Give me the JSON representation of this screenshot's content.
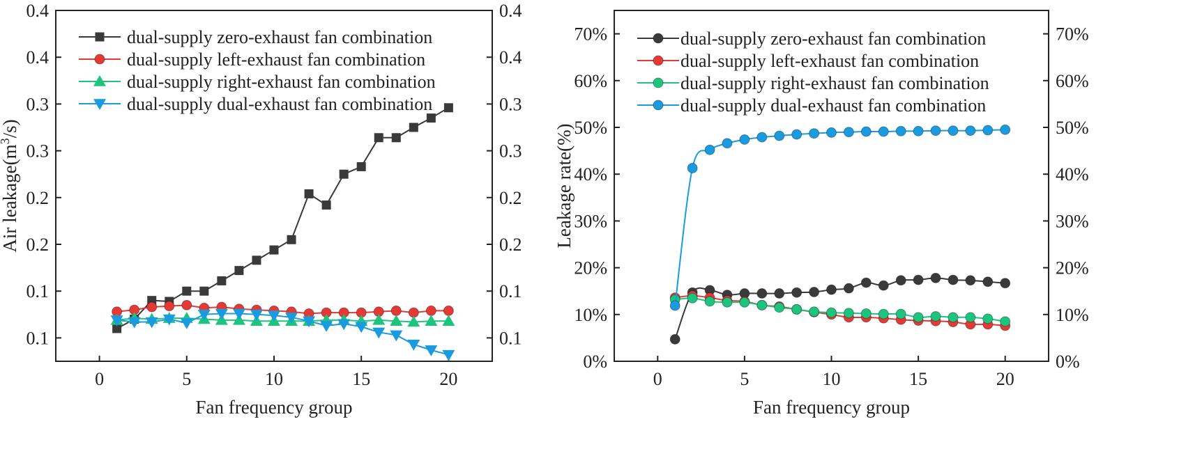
{
  "chart_data": [
    {
      "type": "line",
      "xlabel": "Fan frequency group",
      "ylabel_prefix": "Air leakage(m",
      "ylabel_sup": "3",
      "ylabel_suffix": "/s)",
      "xlim": [
        -2.5,
        22.5
      ],
      "ylim": [
        0.04,
        0.415
      ],
      "x_ticks": [
        0,
        5,
        10,
        15,
        20
      ],
      "y_ticks": [
        {
          "value": 0.065,
          "label": "0.1"
        },
        {
          "value": 0.115,
          "label": "0.1"
        },
        {
          "value": 0.165,
          "label": "0.2"
        },
        {
          "value": 0.215,
          "label": "0.2"
        },
        {
          "value": 0.265,
          "label": "0.3"
        },
        {
          "value": 0.315,
          "label": "0.3"
        },
        {
          "value": 0.365,
          "label": "0.4"
        },
        {
          "value": 0.415,
          "label": "0.4"
        }
      ],
      "legend_position": "top-left",
      "x": [
        1,
        2,
        3,
        4,
        5,
        6,
        7,
        8,
        9,
        10,
        11,
        12,
        13,
        14,
        15,
        16,
        17,
        18,
        19,
        20
      ],
      "series": [
        {
          "name": "dual-supply zero-exhaust fan combination",
          "color": "#3a3a3a",
          "marker": "square",
          "values": [
            0.075,
            0.085,
            0.105,
            0.104,
            0.115,
            0.115,
            0.126,
            0.137,
            0.148,
            0.159,
            0.17,
            0.219,
            0.207,
            0.24,
            0.248,
            0.279,
            0.279,
            0.29,
            0.3,
            0.311
          ]
        },
        {
          "name": "dual-supply left-exhaust fan combination",
          "color": "#e53935",
          "marker": "circle",
          "values": [
            0.093,
            0.095,
            0.098,
            0.099,
            0.1,
            0.097,
            0.098,
            0.096,
            0.095,
            0.094,
            0.093,
            0.091,
            0.092,
            0.092,
            0.092,
            0.093,
            0.094,
            0.092,
            0.094,
            0.094
          ]
        },
        {
          "name": "dual-supply right-exhaust fan combination",
          "color": "#1cc47e",
          "marker": "triangle-up",
          "values": [
            0.084,
            0.086,
            0.085,
            0.086,
            0.086,
            0.085,
            0.084,
            0.084,
            0.083,
            0.083,
            0.083,
            0.083,
            0.084,
            0.084,
            0.083,
            0.084,
            0.083,
            0.082,
            0.083,
            0.083
          ]
        },
        {
          "name": "dual-supply dual-exhaust fan combination",
          "color": "#1a9be0",
          "marker": "triangle-down",
          "values": [
            0.084,
            0.082,
            0.082,
            0.085,
            0.081,
            0.09,
            0.091,
            0.091,
            0.09,
            0.089,
            0.087,
            0.083,
            0.078,
            0.08,
            0.077,
            0.071,
            0.068,
            0.058,
            0.052,
            0.047
          ]
        }
      ]
    },
    {
      "type": "line",
      "xlabel": "Fan frequency group",
      "ylabel": "Leakage rate(%)",
      "xlim": [
        -2.5,
        22.5
      ],
      "ylim": [
        0,
        75
      ],
      "x_ticks": [
        0,
        5,
        10,
        15,
        20
      ],
      "y_ticks": [
        {
          "value": 0,
          "label": "0%"
        },
        {
          "value": 10,
          "label": "10%"
        },
        {
          "value": 20,
          "label": "20%"
        },
        {
          "value": 30,
          "label": "30%"
        },
        {
          "value": 40,
          "label": "40%"
        },
        {
          "value": 50,
          "label": "50%"
        },
        {
          "value": 60,
          "label": "60%"
        },
        {
          "value": 70,
          "label": "70%"
        }
      ],
      "legend_position": "top-left",
      "x": [
        1,
        2,
        3,
        4,
        5,
        6,
        7,
        8,
        9,
        10,
        11,
        12,
        13,
        14,
        15,
        16,
        17,
        18,
        19,
        20
      ],
      "series": [
        {
          "name": "dual-supply zero-exhaust fan combination",
          "color": "#3a3a3a",
          "marker": "circle",
          "values": [
            4.7,
            14.7,
            15.2,
            14.2,
            14.5,
            14.5,
            14.5,
            14.7,
            14.8,
            15.3,
            15.6,
            16.8,
            16.2,
            17.3,
            17.4,
            17.8,
            17.4,
            17.3,
            17.0,
            16.7
          ]
        },
        {
          "name": "dual-supply left-exhaust fan combination",
          "color": "#e53935",
          "marker": "circle",
          "values": [
            13.6,
            14.0,
            13.6,
            13.0,
            12.8,
            12.0,
            11.7,
            11.1,
            10.5,
            10.0,
            9.4,
            9.4,
            9.2,
            8.9,
            8.7,
            8.6,
            8.4,
            7.9,
            7.9,
            7.6
          ]
        },
        {
          "name": "dual-supply right-exhaust fan combination",
          "color": "#1cc47e",
          "marker": "circle",
          "values": [
            13.2,
            13.5,
            12.8,
            12.6,
            12.6,
            12.0,
            11.5,
            11.1,
            10.6,
            10.4,
            10.3,
            10.2,
            10.1,
            10.1,
            9.4,
            9.6,
            9.4,
            9.4,
            9.1,
            8.5
          ]
        },
        {
          "name": "dual-supply dual-exhaust fan combination",
          "color": "#1a9be0",
          "marker": "circle",
          "values": [
            11.9,
            41.3,
            45.2,
            46.6,
            47.4,
            47.9,
            48.2,
            48.5,
            48.7,
            48.9,
            49.0,
            49.1,
            49.1,
            49.2,
            49.2,
            49.3,
            49.3,
            49.3,
            49.4,
            49.5
          ]
        }
      ]
    }
  ]
}
